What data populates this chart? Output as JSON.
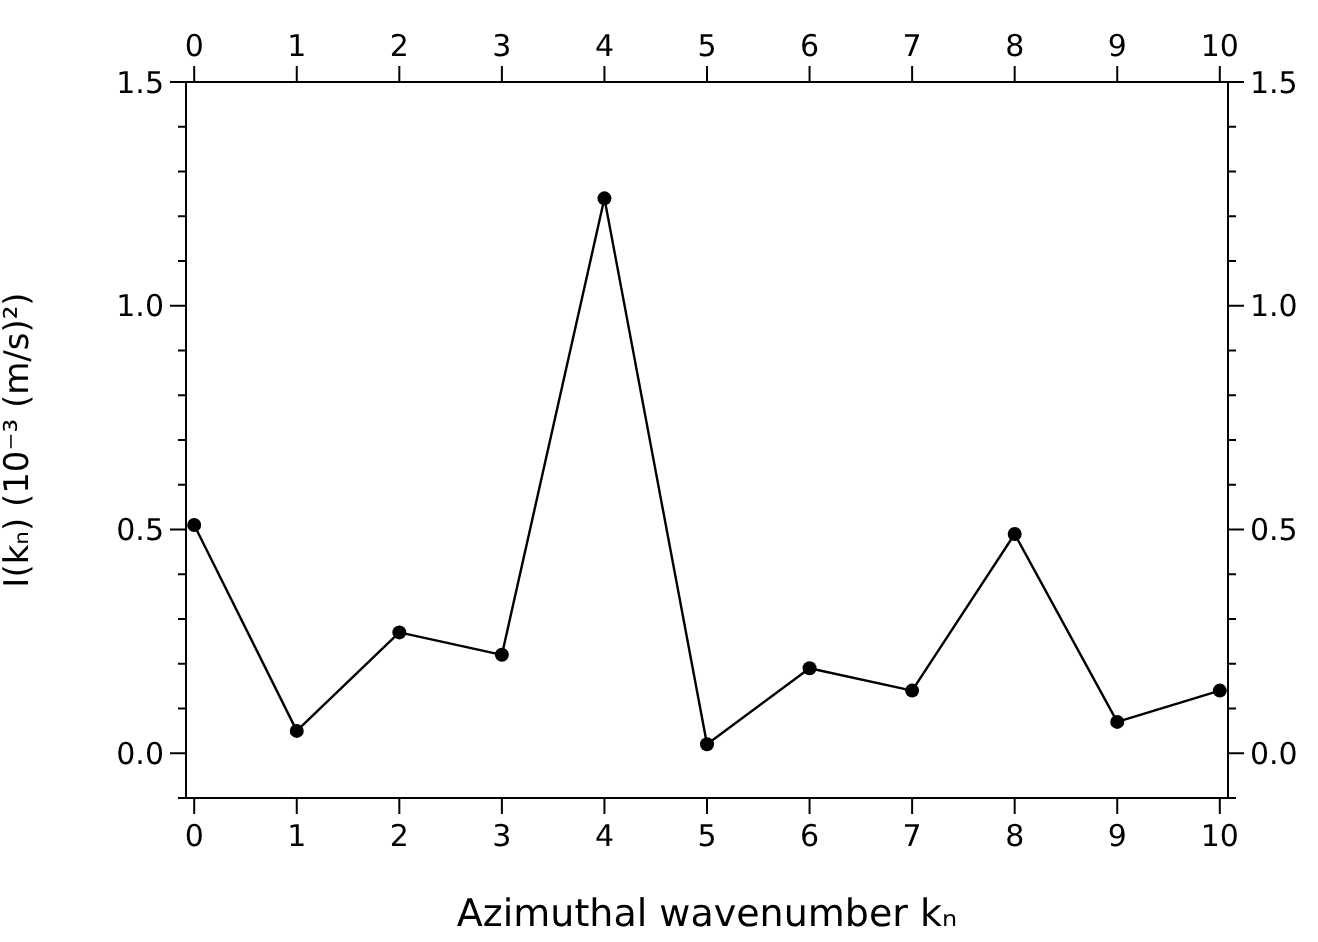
{
  "chart_data": {
    "type": "line",
    "xlabel": "Azimuthal wavenumber kₙ",
    "ylabel": "I(kₙ) (10⁻³ (m/s)²)",
    "x": [
      0,
      1,
      2,
      3,
      4,
      5,
      6,
      7,
      8,
      9,
      10
    ],
    "series": [
      {
        "color": "#000000",
        "values": [
          0.51,
          0.05,
          0.27,
          0.22,
          1.24,
          0.02,
          0.19,
          0.14,
          0.49,
          0.07,
          0.14
        ]
      }
    ],
    "marker": "circle",
    "line_style": "solid",
    "xlim": [
      -0.08,
      10.08
    ],
    "xticks": [
      0,
      1,
      2,
      3,
      4,
      5,
      6,
      7,
      8,
      9,
      10
    ],
    "x2lim": [
      -0.08,
      10.08
    ],
    "x2ticks": [
      0,
      1,
      2,
      3,
      4,
      5,
      6,
      7,
      8,
      9,
      10
    ],
    "ylim": [
      -0.1,
      1.5
    ],
    "yticks": [
      {
        "value": -0.1,
        "label": null
      },
      "0.0",
      {
        "value": 0.1,
        "label": null
      },
      {
        "value": 0.2,
        "label": null
      },
      {
        "value": 0.3,
        "label": null
      },
      {
        "value": 0.4,
        "label": null
      },
      {
        "value": 0.5,
        "label": "0.5"
      },
      {
        "value": 0.6,
        "label": null
      },
      {
        "value": 0.7,
        "label": null
      },
      {
        "value": 0.8,
        "label": null
      },
      {
        "value": 0.9,
        "label": null
      },
      {
        "value": 1.0,
        "label": "1.0"
      },
      {
        "value": 1.1,
        "label": null
      },
      {
        "value": 1.2,
        "label": null
      },
      {
        "value": 1.3,
        "label": null
      },
      {
        "value": 1.4,
        "label": null
      },
      {
        "value": 1.5,
        "label": "1.5"
      }
    ],
    "y2lim": [
      -0.1,
      1.5
    ],
    "y2ticks": [
      {
        "value": -0.1,
        "label": null
      },
      {
        "value": 0,
        "label": "0.0"
      },
      {
        "value": 0.1,
        "label": null
      },
      {
        "value": 0.2,
        "label": null
      },
      {
        "value": 0.3,
        "label": null
      },
      {
        "value": 0.4,
        "label": null
      },
      {
        "value": 0.5,
        "label": "0.5"
      },
      {
        "value": 0.6,
        "label": null
      },
      {
        "value": 0.7,
        "label": null
      },
      {
        "value": 0.8,
        "label": null
      },
      {
        "value": 0.9,
        "label": null
      },
      {
        "value": 1.0,
        "label": "1.0"
      },
      {
        "value": 1.1,
        "label": null
      },
      {
        "value": 1.2,
        "label": null
      },
      {
        "value": 1.3,
        "label": null
      },
      {
        "value": 1.4,
        "label": null
      },
      {
        "value": 1.5,
        "label": "1.5"
      }
    ]
  }
}
